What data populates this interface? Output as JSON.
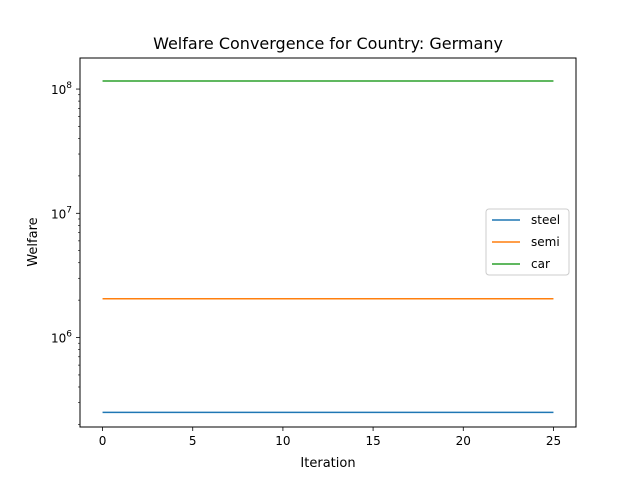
{
  "chart_data": {
    "type": "line",
    "title": "Welfare Convergence for Country: Germany",
    "xlabel": "Iteration",
    "ylabel": "Welfare",
    "xlim": [
      -1.25,
      26.25
    ],
    "ylim_log10": [
      5.28,
      8.25
    ],
    "yscale": "log",
    "grid": false,
    "legend_position": "center-right",
    "x_ticks": [
      {
        "value": 0,
        "label": "0"
      },
      {
        "value": 5,
        "label": "5"
      },
      {
        "value": 10,
        "label": "10"
      },
      {
        "value": 15,
        "label": "15"
      },
      {
        "value": 20,
        "label": "20"
      },
      {
        "value": 25,
        "label": "25"
      }
    ],
    "y_ticks": [
      {
        "exp": 6,
        "base": "10",
        "sup": "6"
      },
      {
        "exp": 7,
        "base": "10",
        "sup": "7"
      },
      {
        "exp": 8,
        "base": "10",
        "sup": "8"
      }
    ],
    "x": [
      0,
      1,
      2,
      3,
      4,
      5,
      6,
      7,
      8,
      9,
      10,
      11,
      12,
      13,
      14,
      15,
      16,
      17,
      18,
      19,
      20,
      21,
      22,
      23,
      24,
      25
    ],
    "series": [
      {
        "name": "steel",
        "color": "#1f77b4",
        "values": [
          250000,
          250000,
          250000,
          250000,
          250000,
          250000,
          250000,
          250000,
          250000,
          250000,
          250000,
          250000,
          250000,
          250000,
          250000,
          250000,
          250000,
          250000,
          250000,
          250000,
          250000,
          250000,
          250000,
          250000,
          250000,
          250000
        ]
      },
      {
        "name": "semi",
        "color": "#ff7f0e",
        "values": [
          2050000,
          2050000,
          2050000,
          2050000,
          2050000,
          2050000,
          2050000,
          2050000,
          2050000,
          2050000,
          2050000,
          2050000,
          2050000,
          2050000,
          2050000,
          2050000,
          2050000,
          2050000,
          2050000,
          2050000,
          2050000,
          2050000,
          2050000,
          2050000,
          2050000,
          2050000
        ]
      },
      {
        "name": "car",
        "color": "#2ca02c",
        "values": [
          116000000,
          116000000,
          116000000,
          116000000,
          116000000,
          116000000,
          116000000,
          116000000,
          116000000,
          116000000,
          116000000,
          116000000,
          116000000,
          116000000,
          116000000,
          116000000,
          116000000,
          116000000,
          116000000,
          116000000,
          116000000,
          116000000,
          116000000,
          116000000,
          116000000,
          116000000
        ]
      }
    ]
  }
}
